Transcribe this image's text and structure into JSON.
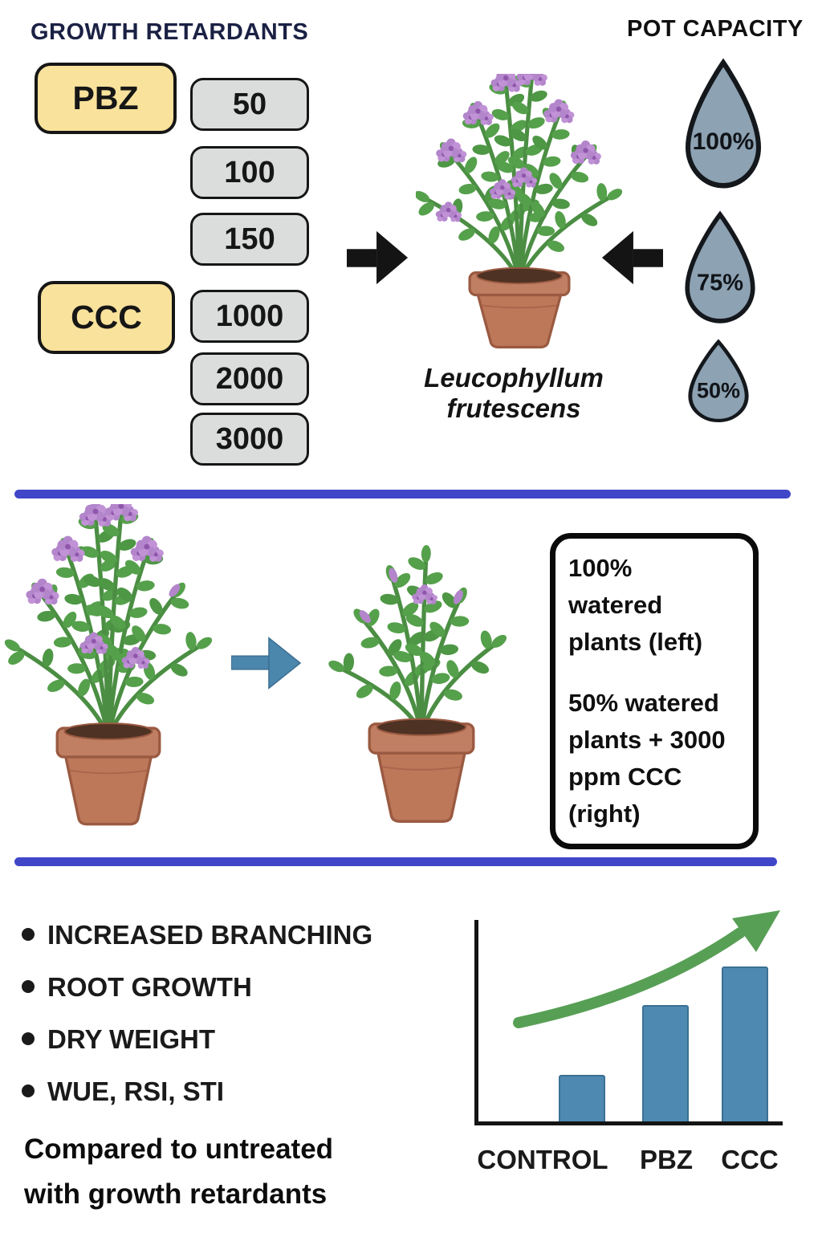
{
  "top": {
    "growth_retardants_title": "GROWTH RETARDANTS",
    "pot_capacity_title": "POT CAPACITY",
    "retardants": [
      {
        "label": "PBZ",
        "doses": [
          "50",
          "100",
          "150"
        ]
      },
      {
        "label": "CCC",
        "doses": [
          "1000",
          "2000",
          "3000"
        ]
      }
    ],
    "species_line1": "Leucophyllum",
    "species_line2": "frutescens",
    "pot_capacity_levels": [
      "100%",
      "75%",
      "50%"
    ]
  },
  "middle": {
    "info_box": {
      "paragraph1_lines": [
        "100%",
        "watered",
        "plants (left)"
      ],
      "paragraph2_lines": [
        "50% watered",
        "plants + 3000",
        "ppm CCC",
        "(right)"
      ]
    }
  },
  "bottom": {
    "bullets": [
      "INCREASED BRANCHING",
      "ROOT GROWTH",
      "DRY WEIGHT",
      "WUE, RSI, STI"
    ],
    "note_lines": [
      "Compared to untreated",
      "with growth retardants"
    ]
  },
  "chart_data": {
    "type": "bar",
    "categories": [
      "CONTROL",
      "PBZ",
      "CCC"
    ],
    "values": [
      30,
      75,
      100
    ],
    "value_units": "relative growth (no y-axis scale shown)",
    "title": "",
    "xlabel": "",
    "ylabel": "",
    "ylim": [
      0,
      130
    ],
    "grid": false,
    "legend_position": "none",
    "annotation": "green upward curved trend arrow above bars",
    "bar_color": "#4d89b1"
  },
  "icons": {
    "droplet": "droplet-icon",
    "black_right_arrow": "arrow-right-icon",
    "black_left_arrow": "arrow-left-icon",
    "blue_right_arrow": "blue-arrow-right-icon",
    "trend_arrow": "trend-up-arrow-icon",
    "potted_plant": "potted-plant-icon"
  },
  "colors": {
    "retardant_chip_yellow": "#f9e29c",
    "dose_chip_gray": "#dbdddc",
    "droplet_gray_blue": "#8da2b2",
    "separator_blue": "#4046c8",
    "bar_blue": "#4d89b1",
    "trend_green": "#579f55",
    "title_navy": "#1b2144",
    "leaf_green": "#55a04b",
    "leaf_green_alt": "#4e9745",
    "stem_green": "#4b8e43",
    "flower_purple": "#c192d6",
    "flower_purple_alt": "#b385cb",
    "flower_center": "#8f57ab",
    "pot_body": "#bd7759",
    "pot_rim": "#c07f63",
    "pot_line": "#9a5a41",
    "soil_brown": "#4e3223"
  }
}
